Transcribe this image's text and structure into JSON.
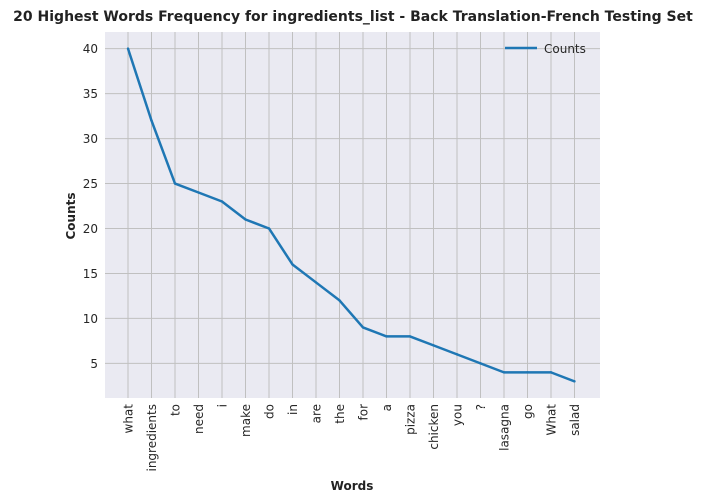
{
  "chart_data": {
    "type": "line",
    "title": "20 Highest Words Frequency for ingredients_list - Back Translation-French Testing Set",
    "xlabel": "Words",
    "ylabel": "Counts",
    "categories": [
      "what",
      "ingredients",
      "to",
      "need",
      "i",
      "make",
      "do",
      "in",
      "are",
      "the",
      "for",
      "a",
      "pizza",
      "chicken",
      "you",
      "?",
      "lasagna",
      "go",
      "What",
      "salad"
    ],
    "series": [
      {
        "name": "Counts",
        "values": [
          40,
          32,
          25,
          24,
          23,
          21,
          20,
          16,
          14,
          12,
          9,
          8,
          8,
          7,
          6,
          5,
          4,
          4,
          4,
          3
        ]
      }
    ],
    "yticks": [
      5,
      10,
      15,
      20,
      25,
      30,
      35,
      40
    ],
    "ylim": [
      1.15,
      41.85
    ],
    "grid": true,
    "legend_position": "top-right",
    "colors": {
      "line": "#1f77b4",
      "background": "#eaeaf2",
      "grid": "#c0c0c0"
    }
  }
}
